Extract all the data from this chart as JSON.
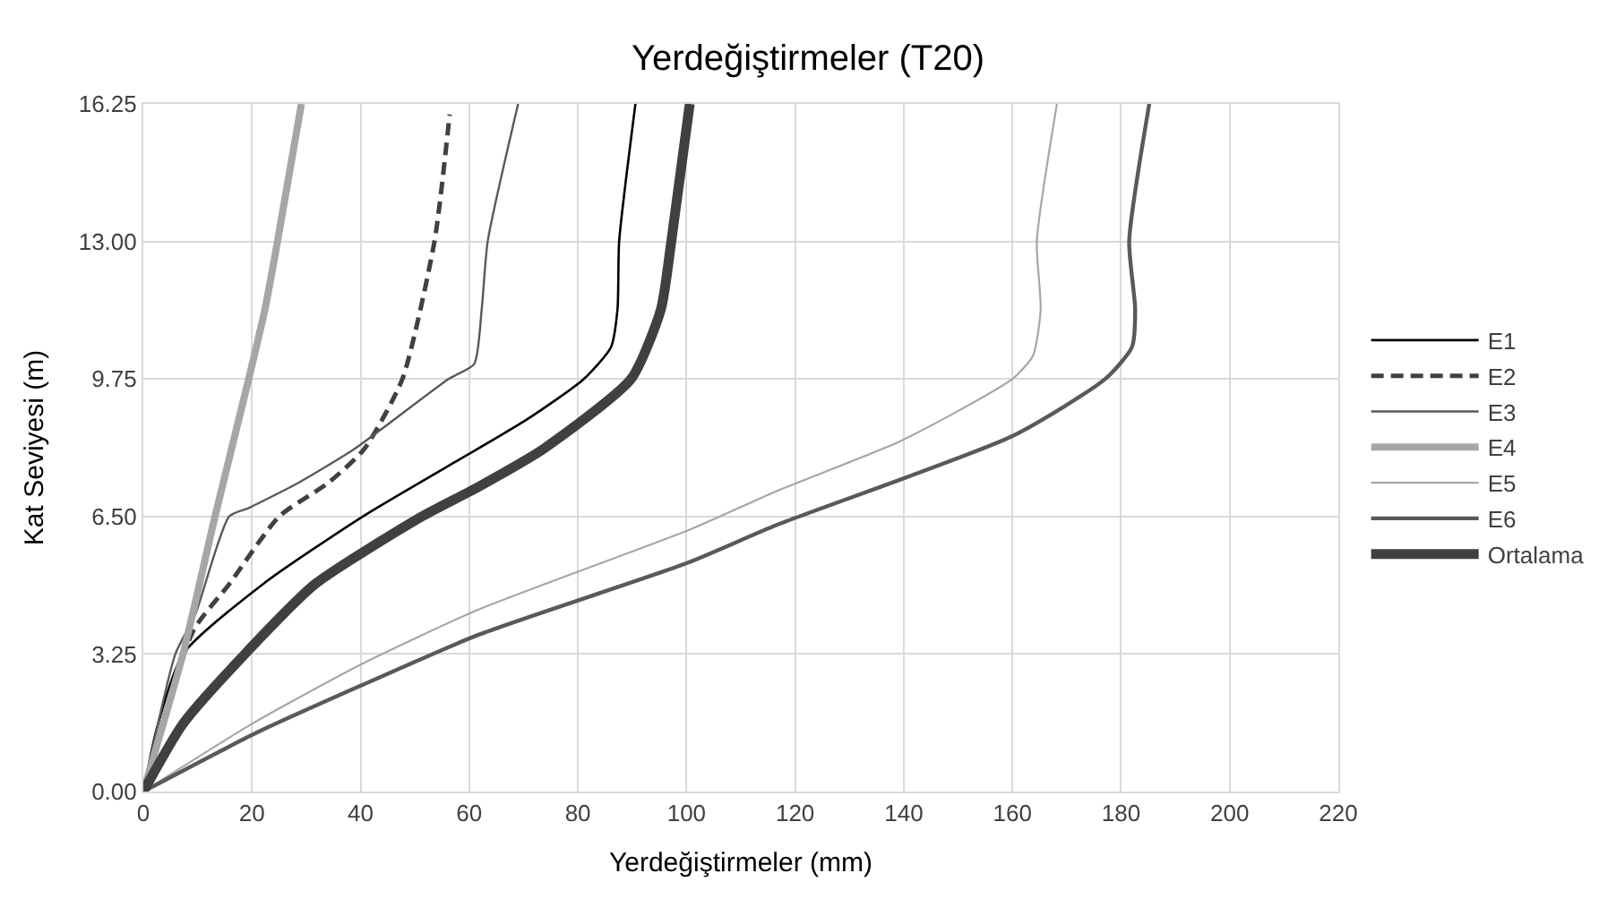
{
  "chart_data": {
    "type": "line",
    "title": "Yerdeğiştirmeler (T20)",
    "xlabel": "Yerdeğiştirmeler (mm)",
    "ylabel": "Kat Seviyesi (m)",
    "xlim": [
      0,
      220
    ],
    "xticks": [
      0,
      20,
      40,
      60,
      80,
      100,
      120,
      140,
      160,
      180,
      200,
      220
    ],
    "ylim": [
      0,
      16.25
    ],
    "yticks": [
      {
        "value": 0,
        "label": "0.00"
      },
      {
        "value": 3.25,
        "label": "3.25"
      },
      {
        "value": 6.5,
        "label": "6.50"
      },
      {
        "value": 9.75,
        "label": "9.75"
      },
      {
        "value": 13,
        "label": "13.00"
      },
      {
        "value": 16.25,
        "label": "16.25"
      }
    ],
    "grid": true,
    "legend": "right",
    "marker": "none",
    "series": [
      {
        "name": "E1",
        "color": "#000000",
        "line_style": "solid",
        "x": [
          0,
          2.5,
          7.3,
          22,
          40.4,
          70.7,
          81.1,
          86.1,
          87.3,
          87.6,
          90.6
        ],
        "values": [
          0,
          1.5,
          3.25,
          4.9,
          6.5,
          8.8,
          9.75,
          10.5,
          11.4,
          13,
          16.25
        ]
      },
      {
        "name": "E2",
        "color": "#404040",
        "line_style": "dashed",
        "x": [
          0,
          9.2,
          15.8,
          25,
          34.1,
          40.7,
          47.7,
          53.6,
          56.4
        ],
        "values": [
          0,
          3.8,
          4.9,
          6.5,
          7.3,
          8.1,
          9.75,
          13,
          16
        ]
      },
      {
        "name": "E3",
        "color": "#595959",
        "line_style": "solid",
        "x": [
          0,
          5.9,
          9.6,
          15.8,
          19.4,
          28.6,
          38.9,
          56.2,
          60.9,
          62.3,
          63.4,
          69
        ],
        "values": [
          0,
          3.25,
          4.2,
          6.5,
          6.7,
          7.3,
          8.1,
          9.75,
          10.1,
          11.4,
          13,
          16.25
        ]
      },
      {
        "name": "E4",
        "color": "#a6a6a6",
        "line_style": "solid",
        "x": [
          0,
          7.3,
          13.2,
          19.4,
          22.4,
          24.7,
          29.1
        ],
        "values": [
          0,
          3.25,
          6.5,
          9.75,
          11.4,
          13,
          16.25
        ]
      },
      {
        "name": "E5",
        "color": "#a6a6a6",
        "line_style": "solid",
        "x": [
          0,
          20,
          40,
          61.7,
          100.8,
          116.6,
          139.7,
          160,
          163.8,
          165.2,
          164.5,
          168.2
        ],
        "values": [
          0,
          1.6,
          3,
          4.3,
          6.2,
          7.1,
          8.3,
          9.75,
          10.3,
          11.4,
          13,
          16.25
        ]
      },
      {
        "name": "E6",
        "color": "#595959",
        "line_style": "solid",
        "x": [
          0,
          21,
          40,
          61.6,
          100.1,
          116.6,
          160,
          177.1,
          182,
          182.6,
          181.5,
          185.2
        ],
        "values": [
          0,
          1.4,
          2.5,
          3.7,
          5.4,
          6.3,
          8.4,
          9.75,
          10.5,
          11.4,
          13,
          16.25
        ]
      },
      {
        "name": "Ortalama",
        "color": "#404040",
        "line_style": "solid",
        "x": [
          0,
          7.3,
          18.7,
          31.6,
          51.3,
          61.7,
          73.7,
          89.8,
          95.3,
          97.2,
          100.6
        ],
        "values": [
          0,
          1.6,
          3.25,
          4.9,
          6.5,
          7.2,
          8.1,
          9.75,
          11.4,
          13,
          16.25
        ]
      }
    ]
  }
}
